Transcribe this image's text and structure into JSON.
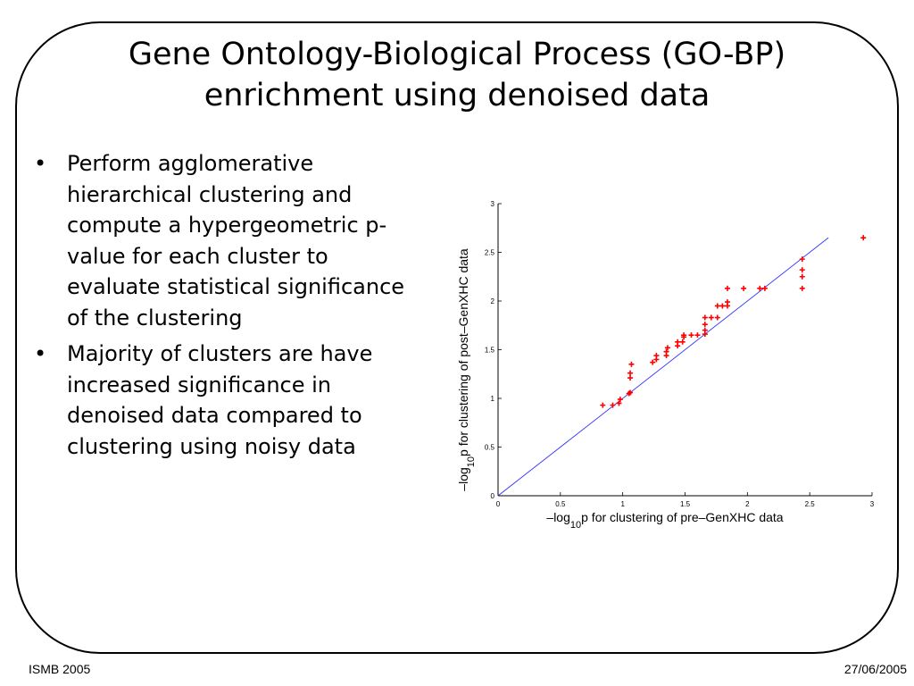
{
  "slide": {
    "title_line1": "Gene Ontology-Biological Process (GO-BP)",
    "title_line2": "enrichment using denoised data",
    "bullets": [
      "Perform agglomerative hierarchical clustering and compute a hypergeometric p-value for each cluster to evaluate statistical significance of the clustering",
      "Majority of clusters are have increased significance in denoised data compared to clustering using noisy data"
    ],
    "bullet_symbol": "•"
  },
  "footer": {
    "left": "ISMB 2005",
    "right": "27/06/2005"
  },
  "chart_data": {
    "type": "scatter",
    "xlabel": {
      "prefix": "–log",
      "subscript": "10",
      "suffix": "p for clustering of pre–GenXHC data"
    },
    "ylabel": {
      "prefix": "–log",
      "subscript": "10",
      "suffix": "p for clustering of post–GenXHC data"
    },
    "xlim": [
      0,
      3
    ],
    "ylim": [
      0,
      3
    ],
    "xticks": [
      "0",
      "0.5",
      "1",
      "1.5",
      "2",
      "2.5",
      "3"
    ],
    "yticks": [
      "0",
      "0.5",
      "1",
      "1.5",
      "2",
      "2.5",
      "3"
    ],
    "marker": "+",
    "marker_color": "#ff0000",
    "reference_line": {
      "from": [
        0,
        0
      ],
      "to": [
        2.65,
        2.65
      ],
      "color": "#3333ff"
    },
    "points": [
      [
        0.84,
        0.93
      ],
      [
        0.92,
        0.93
      ],
      [
        0.97,
        0.95
      ],
      [
        0.98,
        0.99
      ],
      [
        1.05,
        1.05
      ],
      [
        1.06,
        1.06
      ],
      [
        1.06,
        1.21
      ],
      [
        1.06,
        1.26
      ],
      [
        1.07,
        1.35
      ],
      [
        1.24,
        1.37
      ],
      [
        1.27,
        1.4
      ],
      [
        1.27,
        1.44
      ],
      [
        1.35,
        1.44
      ],
      [
        1.35,
        1.48
      ],
      [
        1.36,
        1.52
      ],
      [
        1.44,
        1.54
      ],
      [
        1.44,
        1.58
      ],
      [
        1.48,
        1.58
      ],
      [
        1.49,
        1.63
      ],
      [
        1.49,
        1.65
      ],
      [
        1.55,
        1.65
      ],
      [
        1.6,
        1.65
      ],
      [
        1.66,
        1.66
      ],
      [
        1.66,
        1.7
      ],
      [
        1.66,
        1.76
      ],
      [
        1.66,
        1.83
      ],
      [
        1.71,
        1.83
      ],
      [
        1.76,
        1.83
      ],
      [
        1.76,
        1.95
      ],
      [
        1.8,
        1.95
      ],
      [
        1.84,
        1.95
      ],
      [
        1.84,
        1.99
      ],
      [
        1.84,
        2.13
      ],
      [
        1.97,
        2.13
      ],
      [
        2.1,
        2.13
      ],
      [
        2.14,
        2.13
      ],
      [
        2.44,
        2.13
      ],
      [
        2.44,
        2.25
      ],
      [
        2.44,
        2.32
      ],
      [
        2.44,
        2.43
      ],
      [
        2.93,
        2.65
      ]
    ]
  }
}
